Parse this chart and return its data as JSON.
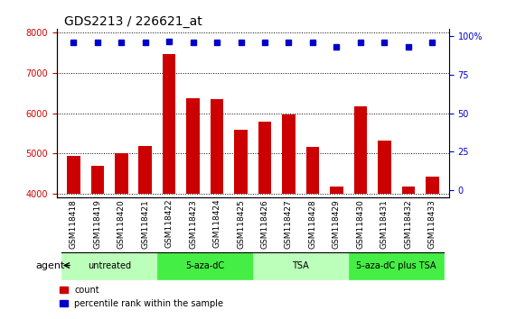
{
  "title": "GDS2213 / 226621_at",
  "samples": [
    "GSM118418",
    "GSM118419",
    "GSM118420",
    "GSM118421",
    "GSM118422",
    "GSM118423",
    "GSM118424",
    "GSM118425",
    "GSM118426",
    "GSM118427",
    "GSM118428",
    "GSM118429",
    "GSM118430",
    "GSM118431",
    "GSM118432",
    "GSM118433"
  ],
  "counts": [
    4950,
    4700,
    5000,
    5180,
    7480,
    6380,
    6340,
    5580,
    5800,
    5970,
    5170,
    4180,
    6170,
    5310,
    4190,
    4430
  ],
  "percentile_ranks": [
    96,
    96,
    96,
    96,
    97,
    96,
    96,
    96,
    96,
    96,
    96,
    93,
    96,
    96,
    93,
    96
  ],
  "bar_color": "#cc0000",
  "dot_color": "#0000cc",
  "ylim_left": [
    3900,
    8100
  ],
  "bar_baseline": 4000,
  "ylim_right": [
    -5,
    105
  ],
  "yticks_left": [
    4000,
    5000,
    6000,
    7000,
    8000
  ],
  "yticks_right": [
    0,
    25,
    50,
    75,
    100
  ],
  "groups": [
    {
      "label": "untreated",
      "start": 0,
      "end": 3,
      "color": "#bbffbb"
    },
    {
      "label": "5-aza-dC",
      "start": 4,
      "end": 7,
      "color": "#44ee44"
    },
    {
      "label": "TSA",
      "start": 8,
      "end": 11,
      "color": "#bbffbb"
    },
    {
      "label": "5-aza-dC plus TSA",
      "start": 12,
      "end": 15,
      "color": "#44ee44"
    }
  ],
  "legend_count_color": "#cc0000",
  "legend_dot_color": "#0000cc",
  "agent_label": "agent",
  "background_color": "#ffffff",
  "plot_bg_color": "#ffffff",
  "bar_width": 0.55,
  "title_fontsize": 10,
  "tick_fontsize": 7,
  "label_fontsize": 8,
  "right_tick_suffix": "%"
}
